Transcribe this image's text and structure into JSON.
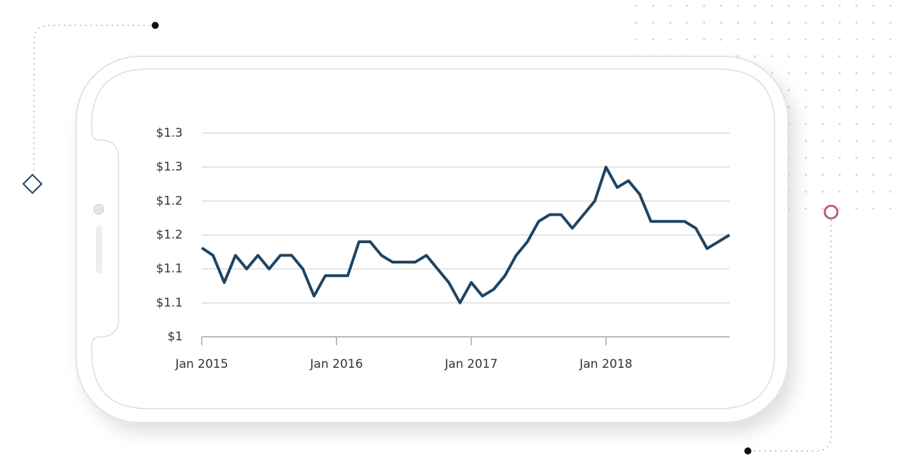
{
  "chart_data": {
    "type": "line",
    "x": [
      "2015-01",
      "2015-02",
      "2015-03",
      "2015-04",
      "2015-05",
      "2015-06",
      "2015-07",
      "2015-08",
      "2015-09",
      "2015-10",
      "2015-11",
      "2015-12",
      "2016-01",
      "2016-02",
      "2016-03",
      "2016-04",
      "2016-05",
      "2016-06",
      "2016-07",
      "2016-08",
      "2016-09",
      "2016-10",
      "2016-11",
      "2016-12",
      "2017-01",
      "2017-02",
      "2017-03",
      "2017-04",
      "2017-05",
      "2017-06",
      "2017-07",
      "2017-08",
      "2017-09",
      "2017-10",
      "2017-11",
      "2017-12",
      "2018-01",
      "2018-02",
      "2018-03",
      "2018-04",
      "2018-05",
      "2018-06",
      "2018-07",
      "2018-08",
      "2018-09",
      "2018-10",
      "2018-11",
      "2018-12"
    ],
    "series": [
      {
        "color": "#1e4464",
        "values": [
          1.131,
          1.12,
          1.08,
          1.12,
          1.1,
          1.12,
          1.1,
          1.12,
          1.12,
          1.1,
          1.06,
          1.09,
          1.09,
          1.09,
          1.14,
          1.14,
          1.12,
          1.11,
          1.11,
          1.11,
          1.12,
          1.1,
          1.08,
          1.05,
          1.08,
          1.06,
          1.07,
          1.09,
          1.12,
          1.14,
          1.17,
          1.18,
          1.18,
          1.16,
          1.18,
          1.2,
          1.25,
          1.22,
          1.23,
          1.21,
          1.17,
          1.17,
          1.17,
          1.17,
          1.16,
          1.13,
          1.14,
          1.15
        ]
      }
    ],
    "xlim": [
      "2015-01",
      "2018-12"
    ],
    "xticks": [
      {
        "value": "2015-01",
        "label": "Jan 2015"
      },
      {
        "value": "2016-01",
        "label": "Jan 2016"
      },
      {
        "value": "2017-01",
        "label": "Jan 2017"
      },
      {
        "value": "2018-01",
        "label": "Jan 2018"
      }
    ],
    "ylim": [
      1,
      1.3
    ],
    "yticks": [
      {
        "value": 1,
        "label": "$1"
      },
      {
        "value": 1.05,
        "label": "$1.1"
      },
      {
        "value": 1.1,
        "label": "$1.1"
      },
      {
        "value": 1.15,
        "label": "$1.2"
      },
      {
        "value": 1.2,
        "label": "$1.2"
      },
      {
        "value": 1.25,
        "label": "$1.3"
      },
      {
        "value": 1.3,
        "label": "$1.3"
      }
    ],
    "grid": true
  }
}
